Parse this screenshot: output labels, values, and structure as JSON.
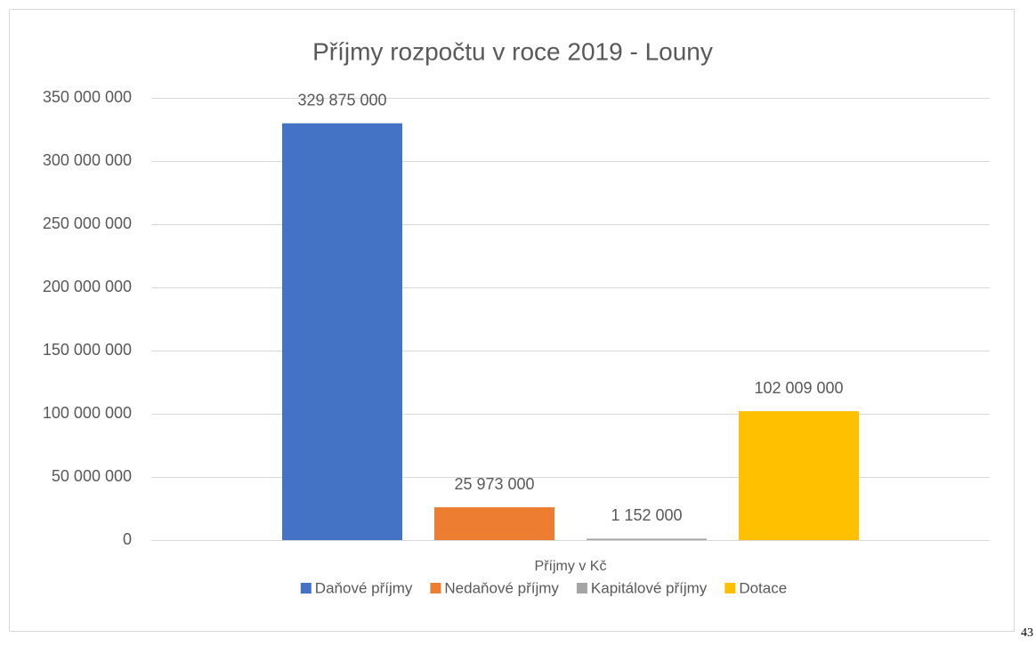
{
  "chart_data": {
    "type": "bar",
    "title": "Příjmy rozpočtu v roce 2019 - Louny",
    "categories": [
      "Příjmy v Kč"
    ],
    "series": [
      {
        "name": "Daňové příjmy",
        "color": "#4472c4",
        "values": [
          329875000
        ],
        "value_labels": [
          "329 875 000"
        ]
      },
      {
        "name": "Nedaňové příjmy",
        "color": "#ed7d31",
        "values": [
          25973000
        ],
        "value_labels": [
          "25 973 000"
        ]
      },
      {
        "name": "Kapitálové příjmy",
        "color": "#a5a5a5",
        "values": [
          1152000
        ],
        "value_labels": [
          "1 152 000"
        ]
      },
      {
        "name": "Dotace",
        "color": "#ffc000",
        "values": [
          102009000
        ],
        "value_labels": [
          "102 009 000"
        ]
      }
    ],
    "ylim": [
      0,
      350000000
    ],
    "yticks": [
      0,
      {
        "value": 50000000,
        "label": "50 000 000"
      },
      {
        "value": 100000000,
        "label": "100 000 000"
      },
      {
        "value": 150000000,
        "label": "150 000 000"
      },
      {
        "value": 200000000,
        "label": "200 000 000"
      },
      {
        "value": 250000000,
        "label": "250 000 000"
      },
      {
        "value": 300000000,
        "label": "300 000 000"
      },
      {
        "value": 350000000,
        "label": "350 000 000"
      }
    ],
    "grid": true,
    "legend": "bottom"
  },
  "page_number": "43"
}
